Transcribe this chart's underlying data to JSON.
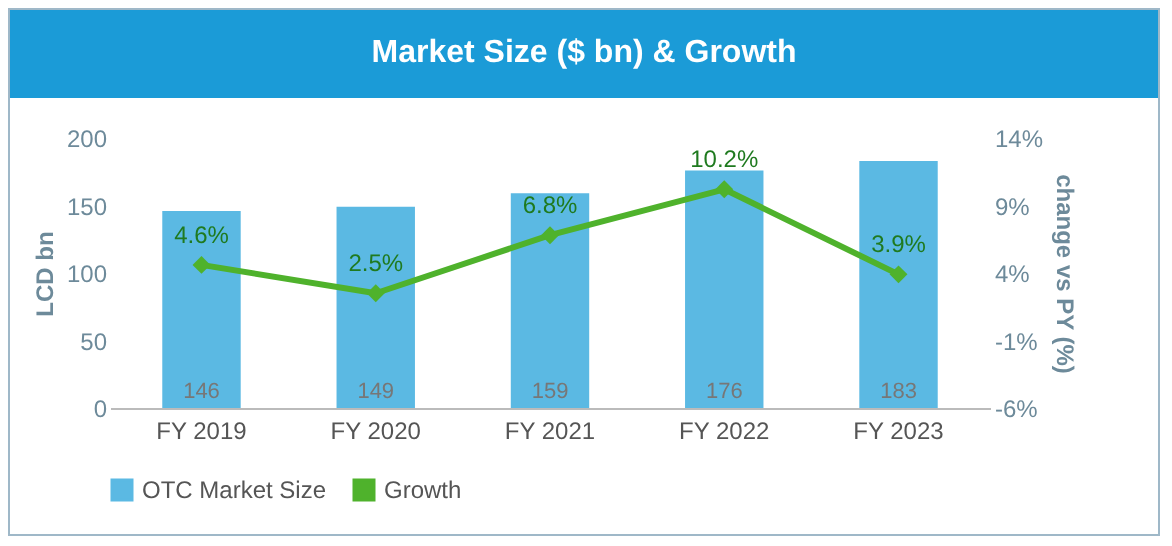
{
  "chart_data": {
    "type": "bar",
    "title": "Market Size ($ bn) & Growth",
    "ylabel": "LCD bn",
    "y2label": "change vs PY (%)",
    "categories": [
      "FY 2019",
      "FY 2020",
      "FY 2021",
      "FY 2022",
      "FY 2023"
    ],
    "series": [
      {
        "name": "OTC Market Size",
        "color": "#5bb9e3",
        "values": [
          146,
          149,
          159,
          176,
          183
        ],
        "value_labels": [
          "146",
          "149",
          "159",
          "176",
          "183"
        ]
      },
      {
        "name": "Growth",
        "type": "line",
        "axis": "y2",
        "color": "#4fb22c",
        "marker": "diamond",
        "values": [
          4.6,
          2.5,
          6.8,
          10.2,
          3.9
        ],
        "value_labels": [
          "4.6%",
          "2.5%",
          "6.8%",
          "10.2%",
          "3.9%"
        ]
      }
    ],
    "ylim": [
      0,
      200
    ],
    "yticks": [
      0,
      50,
      100,
      150,
      200
    ],
    "y2lim": [
      -6,
      14
    ],
    "y2ticks": [
      {
        "value": -6,
        "label": "-6%"
      },
      {
        "value": -1,
        "label": "-1%"
      },
      {
        "value": 4,
        "label": "4%"
      },
      {
        "value": 9,
        "label": "9%"
      },
      {
        "value": 14,
        "label": "14%"
      }
    ],
    "grid": false,
    "legend": "bottom"
  }
}
